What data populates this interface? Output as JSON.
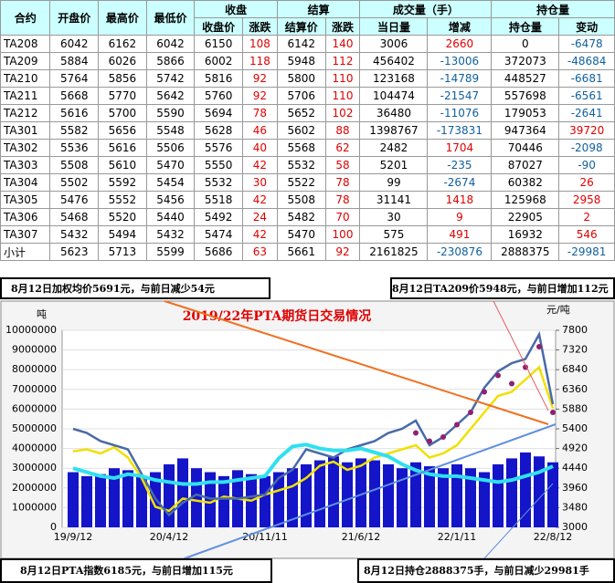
{
  "table": {
    "header_top": [
      "合约",
      "开盘价",
      "最高价",
      "最低价",
      "收盘",
      "结算",
      "成交量（手）",
      "持仓量"
    ],
    "header_sub": [
      "收盘价",
      "涨跌",
      "结算价",
      "涨跌",
      "当日量",
      "增减",
      "持仓量",
      "变动"
    ],
    "rows": [
      [
        "TA208",
        6042,
        6162,
        6042,
        6150,
        108,
        6142,
        140,
        3006,
        2660,
        0,
        -6478
      ],
      [
        "TA209",
        5884,
        6026,
        5866,
        6002,
        118,
        5948,
        112,
        456402,
        -13006,
        372073,
        -48684
      ],
      [
        "TA210",
        5764,
        5856,
        5742,
        5816,
        92,
        5800,
        110,
        123168,
        -14789,
        448527,
        -6681
      ],
      [
        "TA211",
        5668,
        5770,
        5642,
        5760,
        92,
        5706,
        110,
        104474,
        -21547,
        557698,
        -6561
      ],
      [
        "TA212",
        5616,
        5700,
        5590,
        5694,
        78,
        5652,
        102,
        36480,
        -11076,
        179053,
        -2641
      ],
      [
        "TA301",
        5582,
        5656,
        5548,
        5628,
        46,
        5602,
        88,
        1398767,
        -173831,
        947364,
        39720
      ],
      [
        "TA302",
        5536,
        5616,
        5506,
        5576,
        40,
        5568,
        62,
        2482,
        1704,
        70446,
        -2098
      ],
      [
        "TA303",
        5508,
        5610,
        5470,
        5550,
        42,
        5532,
        58,
        5201,
        -235,
        87027,
        -90
      ],
      [
        "TA304",
        5502,
        5592,
        5454,
        5532,
        30,
        5522,
        78,
        99,
        -2674,
        60382,
        26
      ],
      [
        "TA305",
        5476,
        5552,
        5456,
        5518,
        42,
        5508,
        78,
        31141,
        1418,
        125968,
        2958
      ],
      [
        "TA306",
        5468,
        5520,
        5440,
        5492,
        24,
        5482,
        70,
        30,
        9,
        22905,
        2
      ],
      [
        "TA307",
        5432,
        5494,
        5432,
        5474,
        42,
        5470,
        100,
        575,
        491,
        16932,
        546
      ],
      [
        "小计",
        5623,
        5713,
        5599,
        5686,
        63,
        5661,
        92,
        2161825,
        -230876,
        2888375,
        -29981
      ]
    ]
  },
  "chart_data": {
    "type": "combo",
    "title": "2019/22年PTA期货日交易情况",
    "ylabel": "吨",
    "y2label": "元/吨",
    "annotations": [
      "8月12日加权均价5691元，与前日减少54元",
      "8月12日TA209价5948元，与前日增加112元",
      "8月12日PTA指数6185元，与前日增加115元",
      "8月12日持仓2888375手，与前日减少29981手"
    ],
    "categories": [
      "19/9/12",
      null,
      null,
      null,
      null,
      null,
      null,
      "20/4/12",
      null,
      null,
      null,
      null,
      null,
      null,
      "20/11/11",
      null,
      null,
      null,
      null,
      null,
      null,
      "21/6/12",
      null,
      null,
      null,
      null,
      null,
      null,
      "22/1/11",
      null,
      null,
      null,
      null,
      null,
      null,
      "22/8/12"
    ],
    "ylim": [
      0,
      10000000
    ],
    "yticks": [
      0,
      1000000,
      2000000,
      3000000,
      4000000,
      5000000,
      6000000,
      7000000,
      8000000,
      9000000,
      10000000
    ],
    "y2lim": [
      3000,
      7800
    ],
    "y2ticks": [
      3000,
      3480,
      3960,
      4440,
      4920,
      5400,
      5880,
      6360,
      6840,
      7320,
      7800
    ],
    "series": [
      {
        "type": "bar",
        "color": "#1414c8",
        "values": [
          2800000,
          2600000,
          2700000,
          3000000,
          2900000,
          2600000,
          2800000,
          3200000,
          3500000,
          3000000,
          2800000,
          2600000,
          2900000,
          2700000,
          2600000,
          2800000,
          3000000,
          3200000,
          3400000,
          3600000,
          3300000,
          3500000,
          3400000,
          3200000,
          3000000,
          3300000,
          3100000,
          3000000,
          3200000,
          3000000,
          2800000,
          3200000,
          3500000,
          3800000,
          3600000,
          3300000
        ]
      },
      {
        "type": "line",
        "axis": "y2",
        "color": "#f0e000",
        "values": [
          4850,
          4900,
          4800,
          4950,
          4700,
          4200,
          3500,
          3400,
          3700,
          3650,
          3600,
          3750,
          3700,
          3650,
          3800,
          3900,
          4000,
          4200,
          4500,
          4600,
          4400,
          4500,
          4700,
          4800,
          4900,
          5000,
          4700,
          4800,
          5000,
          5400,
          5800,
          6200,
          6300,
          6600,
          6900,
          5900
        ]
      },
      {
        "type": "line",
        "axis": "y2",
        "color": "#4a6aa8",
        "values": [
          5400,
          5300,
          5100,
          5000,
          4900,
          4300,
          3700,
          3300,
          3600,
          3800,
          3700,
          3700,
          3700,
          3750,
          3800,
          4200,
          4400,
          4900,
          4800,
          4700,
          4900,
          5000,
          5100,
          5300,
          5400,
          5600,
          5000,
          5200,
          5500,
          5800,
          6400,
          6800,
          7000,
          7100,
          7700,
          6000
        ]
      },
      {
        "type": "line",
        "color": "#30e0f0",
        "values": [
          3000000,
          2800000,
          2600000,
          2500000,
          2700000,
          2600000,
          2400000,
          2300000,
          2200000,
          2200000,
          2300000,
          2300000,
          2400000,
          2500000,
          2600000,
          3500000,
          4100000,
          4200000,
          4000000,
          3900000,
          3900000,
          4000000,
          3800000,
          3600000,
          3200000,
          2900000,
          2700000,
          2600000,
          2600000,
          2500000,
          2400000,
          2300000,
          2400000,
          2600000,
          2800000,
          3100000
        ]
      },
      {
        "type": "scatter",
        "axis": "y2",
        "color": "#902070",
        "values": [
          null,
          null,
          null,
          null,
          null,
          null,
          null,
          null,
          null,
          null,
          null,
          null,
          null,
          null,
          null,
          null,
          null,
          null,
          null,
          null,
          null,
          null,
          null,
          null,
          null,
          5300,
          5100,
          5200,
          5500,
          5800,
          6300,
          6700,
          6500,
          6900,
          7400,
          5800
        ]
      }
    ]
  }
}
